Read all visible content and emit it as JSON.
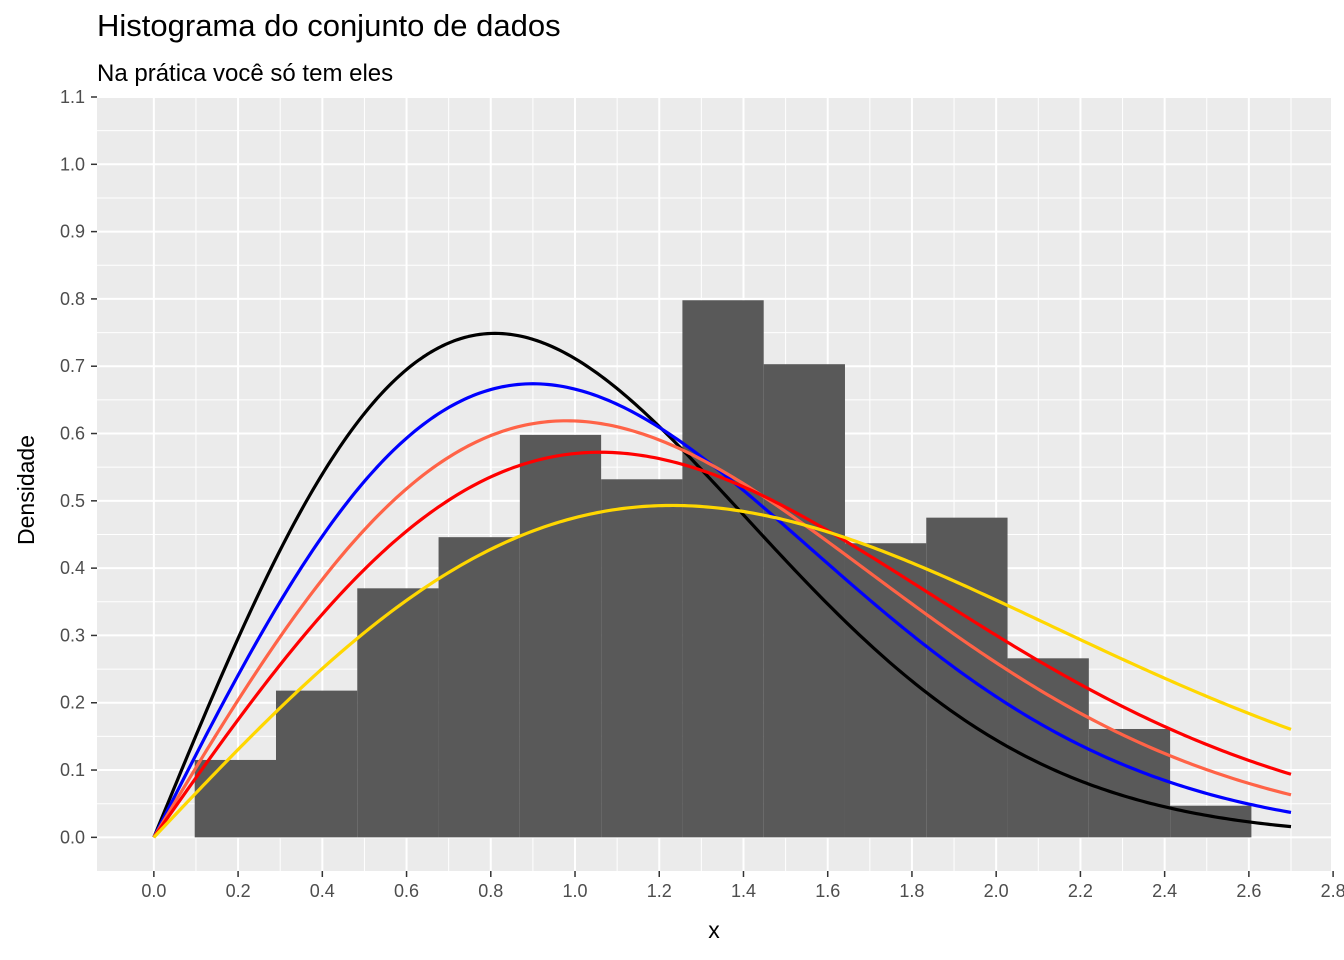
{
  "chart_data": {
    "type": "bar",
    "title": "Histograma do conjunto de dados",
    "subtitle": "Na prática você só tem eles",
    "xlabel": "x",
    "ylabel": "Densidade",
    "xlim": [
      -0.135,
      2.795
    ],
    "ylim": [
      -0.05,
      1.1
    ],
    "x_ticks": [
      "0.0",
      "0.2",
      "0.4",
      "0.6",
      "0.8",
      "1.0",
      "1.2",
      "1.4",
      "1.6",
      "1.8",
      "2.0",
      "2.2",
      "2.4",
      "2.6",
      "2.8"
    ],
    "y_ticks": [
      "0.0",
      "0.1",
      "0.2",
      "0.3",
      "0.4",
      "0.5",
      "0.6",
      "0.7",
      "0.8",
      "0.9",
      "1.0",
      "1.1"
    ],
    "grid": true,
    "histogram": {
      "color": "#595959",
      "bins": [
        {
          "x0": 0.097,
          "x1": 0.29,
          "density": 0.115
        },
        {
          "x0": 0.29,
          "x1": 0.483,
          "density": 0.218
        },
        {
          "x0": 0.483,
          "x1": 0.676,
          "density": 0.37
        },
        {
          "x0": 0.676,
          "x1": 0.869,
          "density": 0.446
        },
        {
          "x0": 0.869,
          "x1": 1.062,
          "density": 0.598
        },
        {
          "x0": 1.062,
          "x1": 1.255,
          "density": 0.532
        },
        {
          "x0": 1.255,
          "x1": 1.448,
          "density": 0.798
        },
        {
          "x0": 1.448,
          "x1": 1.641,
          "density": 0.703
        },
        {
          "x0": 1.641,
          "x1": 1.834,
          "density": 0.437
        },
        {
          "x0": 1.834,
          "x1": 2.027,
          "density": 0.475
        },
        {
          "x0": 2.027,
          "x1": 2.22,
          "density": 0.266
        },
        {
          "x0": 2.22,
          "x1": 2.413,
          "density": 0.161
        },
        {
          "x0": 2.413,
          "x1": 2.606,
          "density": 0.047
        }
      ]
    },
    "curves": {
      "family": "rayleigh",
      "x_range": [
        0,
        2.7
      ],
      "series": [
        {
          "sigma": 0.81,
          "color": "#000000"
        },
        {
          "sigma": 0.9,
          "color": "#0000ff"
        },
        {
          "sigma": 0.98,
          "color": "#ff6347"
        },
        {
          "sigma": 1.06,
          "color": "#ff0000"
        },
        {
          "sigma": 1.23,
          "color": "#ffd700"
        }
      ]
    }
  }
}
